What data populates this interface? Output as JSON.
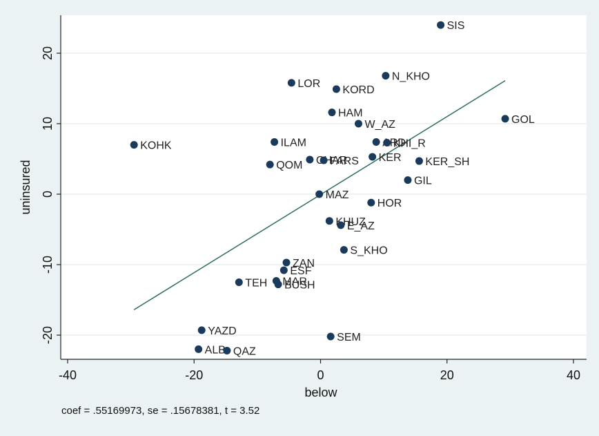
{
  "chart_data": {
    "type": "scatter",
    "xlabel": "below",
    "ylabel": "uninsured",
    "xlim": [
      -40,
      40
    ],
    "ylim": [
      -23,
      25
    ],
    "xticks": [
      -40,
      -20,
      0,
      20,
      40
    ],
    "yticks": [
      -20,
      -10,
      0,
      10,
      20
    ],
    "grid": "horizontal",
    "colors": {
      "marker": "#1a3a5c",
      "fit_line": "#2d6e5e",
      "plot_bg": "#ffffff",
      "outer_bg": "#eaf2f3"
    },
    "points": [
      {
        "label": "SIS",
        "x": 19.0,
        "y": 24.0
      },
      {
        "label": "N_KHO",
        "x": 10.3,
        "y": 16.8
      },
      {
        "label": "LOR",
        "x": -4.6,
        "y": 15.8
      },
      {
        "label": "KORD",
        "x": 2.5,
        "y": 14.9
      },
      {
        "label": "HAM",
        "x": 1.8,
        "y": 11.6
      },
      {
        "label": "GOL",
        "x": 29.2,
        "y": 10.7
      },
      {
        "label": "W_AZ",
        "x": 6.0,
        "y": 10.0
      },
      {
        "label": "KOHK",
        "x": -29.5,
        "y": 7.0
      },
      {
        "label": "ILAM",
        "x": -7.3,
        "y": 7.4
      },
      {
        "label": "ARD",
        "x": 8.8,
        "y": 7.4
      },
      {
        "label": "KHI_R",
        "x": 10.5,
        "y": 7.3
      },
      {
        "label": "KER",
        "x": 8.2,
        "y": 5.3
      },
      {
        "label": "KER_SH",
        "x": 15.6,
        "y": 4.7
      },
      {
        "label": "CHAR",
        "x": -1.7,
        "y": 4.9
      },
      {
        "label": "FARS",
        "x": 0.5,
        "y": 4.8
      },
      {
        "label": "QOM",
        "x": -8.0,
        "y": 4.2
      },
      {
        "label": "GIL",
        "x": 13.8,
        "y": 2.0
      },
      {
        "label": "MAZ",
        "x": -0.2,
        "y": 0.0
      },
      {
        "label": "HOR",
        "x": 8.0,
        "y": -1.2
      },
      {
        "label": "KHUZ",
        "x": 1.4,
        "y": -3.8
      },
      {
        "label": "E_AZ",
        "x": 3.2,
        "y": -4.4
      },
      {
        "label": "S_KHO",
        "x": 3.7,
        "y": -7.9
      },
      {
        "label": "ZAN",
        "x": -5.4,
        "y": -9.7
      },
      {
        "label": "ESF",
        "x": -5.8,
        "y": -10.8
      },
      {
        "label": "TEH",
        "x": -12.9,
        "y": -12.5
      },
      {
        "label": "MAR",
        "x": -7.0,
        "y": -12.3
      },
      {
        "label": "BUSH",
        "x": -6.7,
        "y": -12.8
      },
      {
        "label": "YAZD",
        "x": -18.8,
        "y": -19.3
      },
      {
        "label": "SEM",
        "x": 1.6,
        "y": -20.2
      },
      {
        "label": "ALB",
        "x": -19.3,
        "y": -22.0
      },
      {
        "label": "QAZ",
        "x": -14.8,
        "y": -22.2
      }
    ],
    "fit_line": {
      "x": [
        -29.5,
        29.2
      ],
      "y": [
        -16.4,
        16.1
      ]
    },
    "note": "coef = .55169973, se = .15678381, t = 3.52"
  }
}
